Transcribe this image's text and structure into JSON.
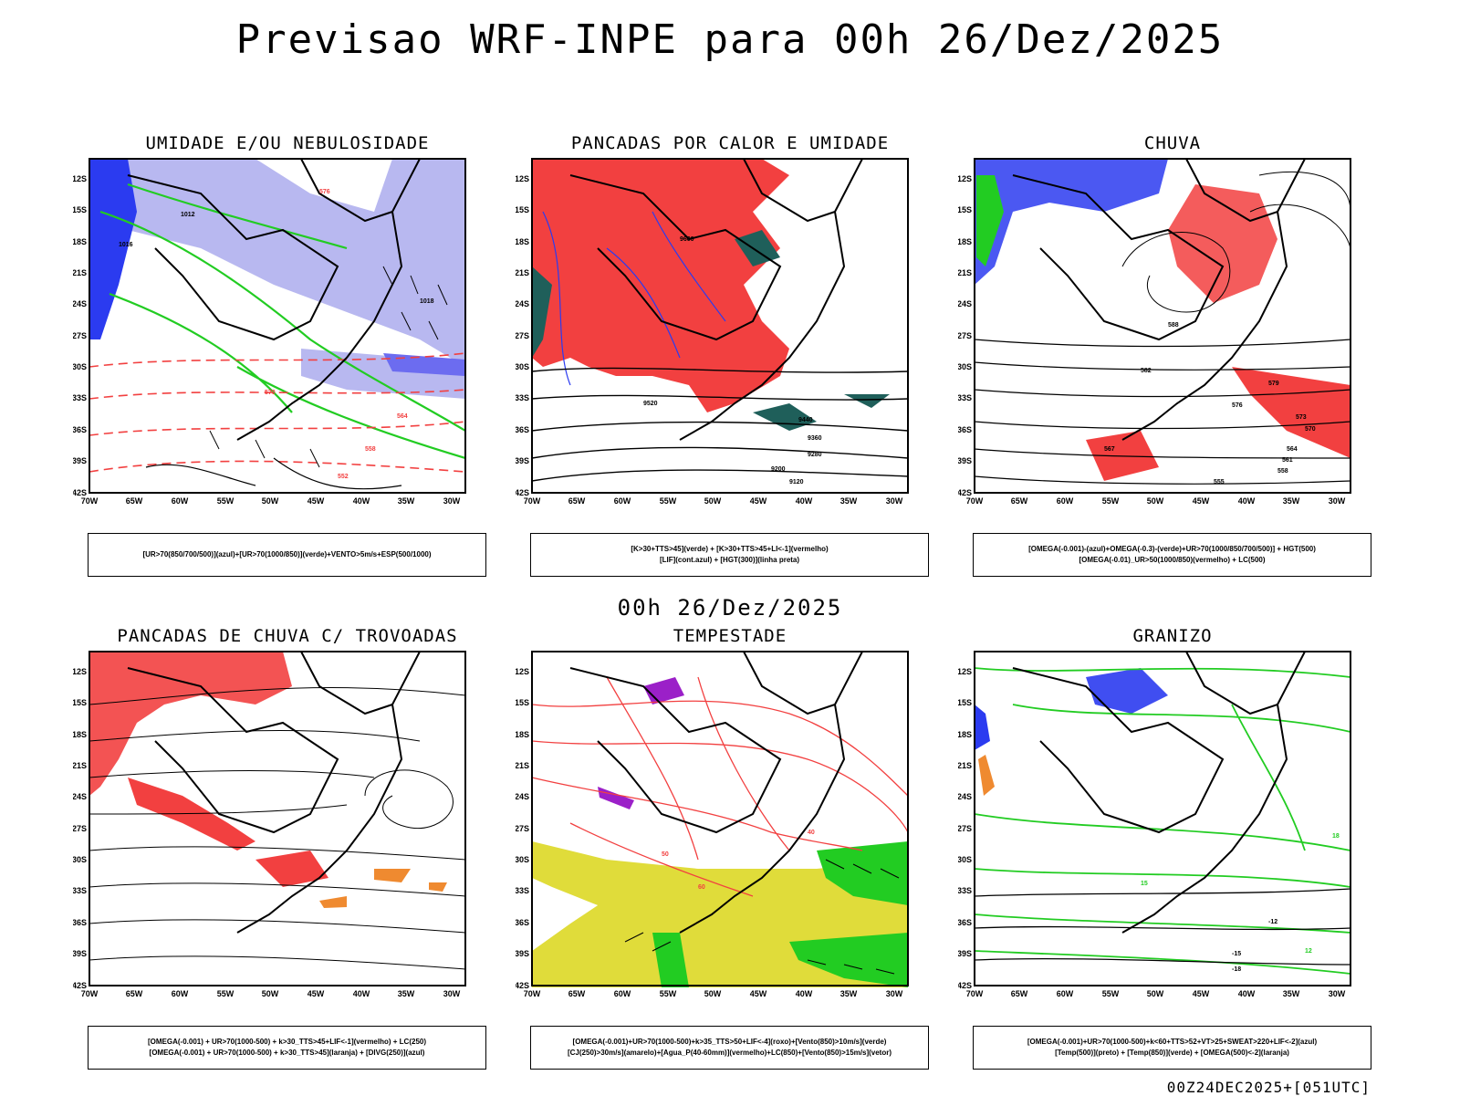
{
  "title": "Previsao WRF-INPE  para 00h 26/Dez/2025",
  "subtitle": "00h 26/Dez/2025",
  "footer": "00Z24DEC2025+[051UTC]",
  "axes": {
    "lat_labels": [
      "12S",
      "15S",
      "18S",
      "21S",
      "24S",
      "27S",
      "30S",
      "33S",
      "36S",
      "39S",
      "42S"
    ],
    "lon_labels": [
      "70W",
      "65W",
      "60W",
      "55W",
      "50W",
      "45W",
      "40W",
      "35W",
      "30W"
    ]
  },
  "panels": [
    {
      "title": "UMIDADE E/OU NEBULOSIDADE",
      "legend": [
        "[UR>70(850/700/500)](azul)+[UR>70(1000/850)](verde)+VENTO>5m/s+ESP(500/1000)"
      ],
      "contour_labels": [
        "1012",
        "1016",
        "1018",
        "576",
        "570",
        "564",
        "558",
        "552"
      ]
    },
    {
      "title": "PANCADAS POR CALOR E UMIDADE",
      "legend": [
        "[K>30+TTS>45](verde)  +  [K>30+TTS>45+LI<-1](vermelho)",
        "[LIF](cont.azul)  +  [HGT(300)](linha preta)"
      ],
      "contour_labels": [
        "9600",
        "9520",
        "9440",
        "9360",
        "9280",
        "9200",
        "9120"
      ]
    },
    {
      "title": "CHUVA",
      "legend": [
        "[OMEGA(-0.001)-(azul)+OMEGA(-0.3)-(verde)+UR>70(1000/850/700/500)]  +  HGT(500)",
        "[OMEGA(-0.01)_UR>50(1000/850)(vermelho)  +  LC(500)"
      ],
      "contour_labels": [
        "588",
        "582",
        "579",
        "576",
        "573",
        "570",
        "567",
        "564",
        "561",
        "558",
        "555"
      ]
    },
    {
      "title": "PANCADAS DE CHUVA C/ TROVOADAS",
      "legend": [
        "[OMEGA(-0.001)  +  UR>70(1000-500)  +  k>30_TTS>45+LIF<-1](vermelho)  +  LC(250)",
        "[OMEGA(-0.001)  +  UR>70(1000-500)  +  k>30_TTS>45](laranja)  +  [DIVG(250)](azul)"
      ],
      "contour_labels": []
    },
    {
      "title": "TEMPESTADE",
      "legend": [
        "[OMEGA(-0.001)+UR>70(1000-500)+k>35_TTS>50+LIF<-4](roxo)+[Vento(850)>10m/s](verde)",
        "[CJ(250)>30m/s](amarelo)+[Agua_P(40-60mm)](vermelho)+LC(850)+[Vento(850)>15m/s](vetor)"
      ],
      "contour_labels": [
        "40",
        "50",
        "60"
      ]
    },
    {
      "title": "GRANIZO",
      "legend": [
        "[OMEGA(-0.001)+UR>70(1000-500)+k<60+TTS>52+VT>25+SWEAT>220+LIF<-2](azul)",
        "[Temp(500)](preto)  +  [Temp(850)](verde)  +  [OMEGA(500)<-2](laranja)"
      ],
      "contour_labels": [
        "-12",
        "-15",
        "-18",
        "12",
        "15",
        "18"
      ]
    }
  ],
  "colors": {
    "blue": "#2b3bf0",
    "lavender": "#b8b8f0",
    "green": "#22cc22",
    "red": "#f24040",
    "teal": "#1f5f5a",
    "orange": "#ef8a30",
    "purple": "#9b20c8",
    "yellow": "#e0dc3a"
  }
}
